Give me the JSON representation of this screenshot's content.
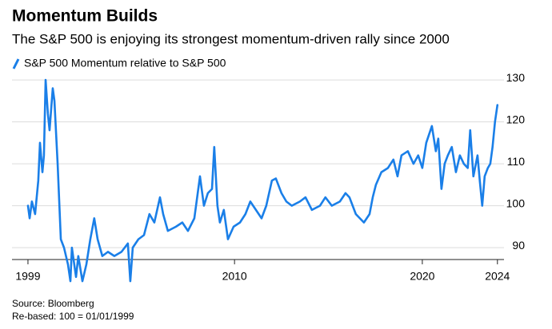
{
  "chart_data": {
    "type": "line",
    "title": "Momentum Builds",
    "subtitle": "The S&P 500 is enjoying its strongest momentum-driven rally since 2000",
    "source": "Source: Bloomberg",
    "note": "Re-based: 100 = 01/01/1999",
    "x": [
      1999.0,
      1999.09,
      1999.21,
      1999.38,
      1999.55,
      1999.64,
      1999.77,
      1999.85,
      1999.94,
      2000.06,
      2000.15,
      2000.32,
      2000.41,
      2000.58,
      2000.75,
      2000.92,
      2001.13,
      2001.26,
      2001.34,
      2001.56,
      2001.68,
      2001.9,
      2002.11,
      2002.32,
      2002.53,
      2002.71,
      2002.96,
      2003.26,
      2003.6,
      2003.98,
      2004.32,
      2004.45,
      2004.58,
      2004.88,
      2005.18,
      2005.47,
      2005.73,
      2006.03,
      2006.2,
      2006.45,
      2006.88,
      2007.22,
      2007.52,
      2007.86,
      2008.16,
      2008.37,
      2008.58,
      2008.8,
      2008.92,
      2009.09,
      2009.22,
      2009.43,
      2009.65,
      2009.95,
      2010.29,
      2010.58,
      2010.84,
      2011.14,
      2011.44,
      2011.69,
      2011.99,
      2012.2,
      2012.5,
      2012.76,
      2013.05,
      2013.48,
      2013.78,
      2014.12,
      2014.55,
      2014.84,
      2015.18,
      2015.61,
      2015.91,
      2016.12,
      2016.46,
      2016.89,
      2017.19,
      2017.36,
      2017.53,
      2017.82,
      2018.17,
      2018.46,
      2018.68,
      2018.89,
      2019.23,
      2019.53,
      2019.78,
      2020.0,
      2020.21,
      2020.51,
      2020.72,
      2020.85,
      2021.02,
      2021.19,
      2021.36,
      2021.57,
      2021.79,
      2022.0,
      2022.21,
      2022.42,
      2022.55,
      2022.72,
      2022.94,
      2023.06,
      2023.19,
      2023.32,
      2023.49,
      2023.62,
      2023.74,
      2023.87,
      2024.0
    ],
    "series": [
      {
        "name": "S&P 500 Momentum relative to S&P 500",
        "color": "#1a7fe8",
        "values": [
          100,
          97,
          101,
          98,
          106,
          115,
          108,
          112,
          130,
          122,
          118,
          128,
          125,
          110,
          92,
          90,
          86,
          82,
          90,
          83,
          88,
          82,
          86,
          92,
          97,
          92,
          88,
          89,
          88,
          89,
          91,
          82,
          90,
          92,
          93,
          98,
          96,
          102,
          98,
          94,
          95,
          96,
          94,
          97,
          107,
          100,
          103,
          104,
          114,
          100,
          96,
          99,
          92,
          95,
          96,
          98,
          101,
          99,
          97,
          100,
          106,
          106.5,
          103,
          101,
          100,
          101,
          102,
          99,
          100,
          102,
          100,
          101,
          103,
          102,
          98,
          96,
          98,
          102,
          105,
          108,
          109,
          111,
          107,
          112,
          113,
          110,
          112,
          109,
          115,
          119,
          113,
          116,
          104,
          110,
          112,
          114,
          108,
          112,
          110,
          109,
          118,
          107,
          112,
          106,
          100,
          107,
          109,
          110,
          114,
          120,
          124
        ]
      }
    ],
    "xlim": [
      1998.15,
      2024.35
    ],
    "ylim": [
      80.5,
      132.3
    ],
    "xticks": [
      1999,
      2010,
      2020,
      2024
    ],
    "yticks": [
      90,
      100,
      110,
      120,
      130
    ],
    "grid": true
  }
}
